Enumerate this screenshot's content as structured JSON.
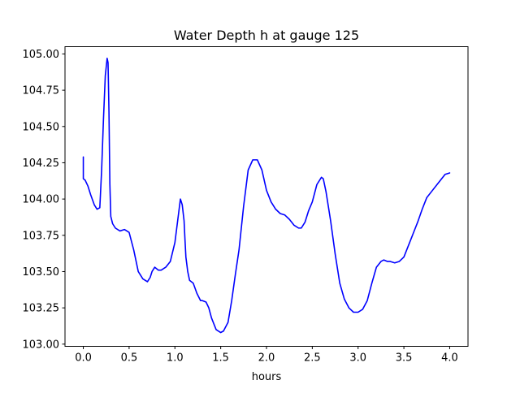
{
  "chart_data": {
    "type": "line",
    "title": "Water Depth h at gauge 125",
    "xlabel": "hours",
    "ylabel": "",
    "xlim": [
      -0.2,
      4.2
    ],
    "ylim": [
      102.985,
      105.05
    ],
    "x_ticks": [
      0.0,
      0.5,
      1.0,
      1.5,
      2.0,
      2.5,
      3.0,
      3.5,
      4.0
    ],
    "x_tick_labels": [
      "0.0",
      "0.5",
      "1.0",
      "1.5",
      "2.0",
      "2.5",
      "3.0",
      "3.5",
      "4.0"
    ],
    "y_ticks": [
      103.0,
      103.25,
      103.5,
      103.75,
      104.0,
      104.25,
      104.5,
      104.75,
      105.0
    ],
    "y_tick_labels": [
      "103.00",
      "103.25",
      "103.50",
      "103.75",
      "104.00",
      "104.25",
      "104.50",
      "104.75",
      "105.00"
    ],
    "grid": false,
    "series": [
      {
        "color": "#0000ff",
        "x": [
          0.0,
          0.0,
          0.02,
          0.05,
          0.08,
          0.12,
          0.15,
          0.18,
          0.2,
          0.22,
          0.24,
          0.26,
          0.27,
          0.28,
          0.29,
          0.3,
          0.32,
          0.35,
          0.4,
          0.45,
          0.5,
          0.55,
          0.6,
          0.65,
          0.7,
          0.73,
          0.75,
          0.78,
          0.82,
          0.85,
          0.9,
          0.95,
          1.0,
          1.03,
          1.06,
          1.08,
          1.1,
          1.11,
          1.12,
          1.14,
          1.16,
          1.18,
          1.2,
          1.24,
          1.28,
          1.3,
          1.34,
          1.37,
          1.4,
          1.45,
          1.5,
          1.53,
          1.58,
          1.62,
          1.66,
          1.7,
          1.75,
          1.8,
          1.85,
          1.9,
          1.95,
          2.0,
          2.05,
          2.1,
          2.15,
          2.2,
          2.25,
          2.3,
          2.35,
          2.38,
          2.42,
          2.46,
          2.5,
          2.55,
          2.6,
          2.62,
          2.65,
          2.7,
          2.75,
          2.8,
          2.85,
          2.9,
          2.95,
          3.0,
          3.05,
          3.1,
          3.15,
          3.2,
          3.25,
          3.28,
          3.32,
          3.35,
          3.4,
          3.45,
          3.5,
          3.55,
          3.6,
          3.65,
          3.7,
          3.75,
          3.8,
          3.85,
          3.9,
          3.95,
          4.0
        ],
        "y": [
          104.29,
          104.14,
          104.13,
          104.09,
          104.03,
          103.96,
          103.93,
          103.94,
          104.2,
          104.55,
          104.85,
          104.97,
          104.94,
          104.6,
          104.1,
          103.88,
          103.83,
          103.8,
          103.78,
          103.79,
          103.77,
          103.65,
          103.5,
          103.45,
          103.43,
          103.46,
          103.5,
          103.53,
          103.51,
          103.51,
          103.53,
          103.57,
          103.7,
          103.85,
          104.0,
          103.96,
          103.85,
          103.72,
          103.6,
          103.5,
          103.44,
          103.43,
          103.42,
          103.35,
          103.3,
          103.3,
          103.29,
          103.25,
          103.18,
          103.1,
          103.08,
          103.09,
          103.15,
          103.3,
          103.48,
          103.65,
          103.95,
          104.2,
          104.27,
          104.27,
          104.2,
          104.06,
          103.98,
          103.93,
          103.9,
          103.89,
          103.86,
          103.82,
          103.8,
          103.8,
          103.84,
          103.92,
          103.98,
          104.1,
          104.15,
          104.14,
          104.05,
          103.85,
          103.62,
          103.42,
          103.31,
          103.25,
          103.22,
          103.22,
          103.24,
          103.3,
          103.42,
          103.53,
          103.57,
          103.58,
          103.57,
          103.57,
          103.56,
          103.57,
          103.6,
          103.68,
          103.76,
          103.84,
          103.93,
          104.01,
          104.05,
          104.09,
          104.13,
          104.17,
          104.18
        ]
      }
    ]
  }
}
